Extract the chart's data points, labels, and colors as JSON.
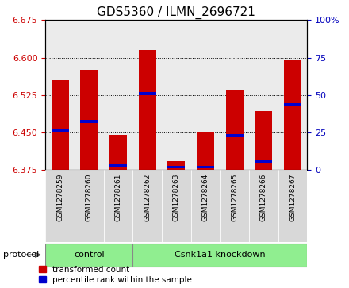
{
  "title": "GDS5360 / ILMN_2696721",
  "samples": [
    "GSM1278259",
    "GSM1278260",
    "GSM1278261",
    "GSM1278262",
    "GSM1278263",
    "GSM1278264",
    "GSM1278265",
    "GSM1278266",
    "GSM1278267"
  ],
  "red_values": [
    6.555,
    6.575,
    6.445,
    6.615,
    6.393,
    6.452,
    6.535,
    6.493,
    6.595
  ],
  "blue_values": [
    6.455,
    6.472,
    6.384,
    6.528,
    6.381,
    6.381,
    6.444,
    6.392,
    6.505
  ],
  "base": 6.375,
  "ylim_left": [
    6.375,
    6.675
  ],
  "ylim_right": [
    0,
    100
  ],
  "yticks_left": [
    6.375,
    6.45,
    6.525,
    6.6,
    6.675
  ],
  "yticks_right": [
    0,
    25,
    50,
    75,
    100
  ],
  "bar_width": 0.6,
  "bar_color_red": "#cc0000",
  "bar_color_blue": "#0000cc",
  "left_tick_color": "#cc0000",
  "right_tick_color": "#0000bb",
  "title_fontsize": 11,
  "tick_fontsize": 8,
  "sample_fontsize": 6.5,
  "legend_red": "transformed count",
  "legend_blue": "percentile rank within the sample",
  "legend_fontsize": 7.5,
  "protocol_label": "protocol",
  "control_label": "control",
  "knockdown_label": "Csnk1a1 knockdown",
  "n_control": 3,
  "group_color": "#90ee90",
  "xticklabel_bg": "#d8d8d8"
}
